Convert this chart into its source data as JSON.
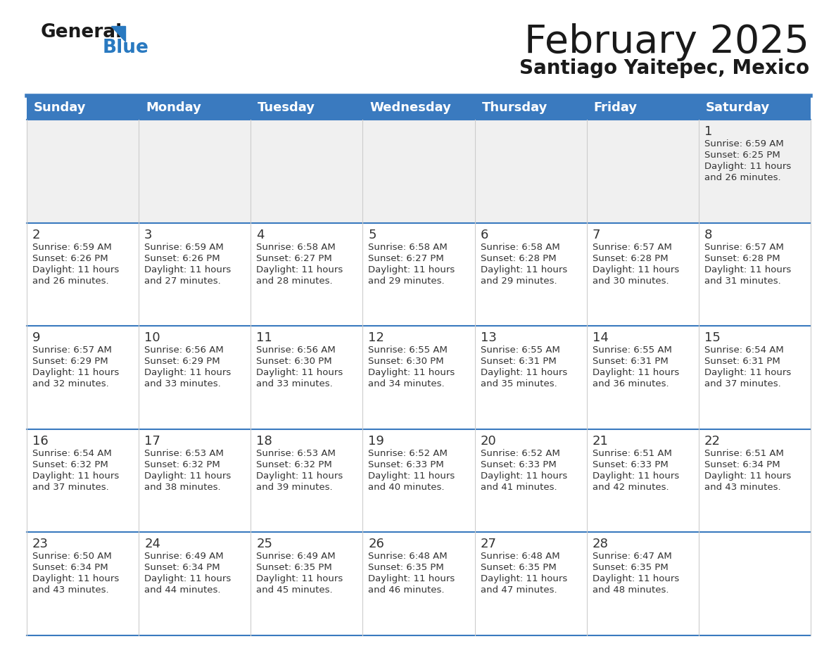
{
  "title": "February 2025",
  "subtitle": "Santiago Yaitepec, Mexico",
  "days_of_week": [
    "Sunday",
    "Monday",
    "Tuesday",
    "Wednesday",
    "Thursday",
    "Friday",
    "Saturday"
  ],
  "header_bg": "#3a7abf",
  "header_text": "#ffffff",
  "row_bg": "#f0f0f0",
  "row_bg_alt": "#ffffff",
  "cell_border_color": "#3a7abf",
  "cell_border_thin": "#cccccc",
  "day_num_color": "#333333",
  "info_text_color": "#333333",
  "title_color": "#1a1a1a",
  "subtitle_color": "#1a1a1a",
  "logo_general_color": "#1a1a1a",
  "logo_blue_color": "#2979c0",
  "calendar_data": [
    [
      {
        "day": null,
        "sunrise": null,
        "sunset": null,
        "daylight": null
      },
      {
        "day": null,
        "sunrise": null,
        "sunset": null,
        "daylight": null
      },
      {
        "day": null,
        "sunrise": null,
        "sunset": null,
        "daylight": null
      },
      {
        "day": null,
        "sunrise": null,
        "sunset": null,
        "daylight": null
      },
      {
        "day": null,
        "sunrise": null,
        "sunset": null,
        "daylight": null
      },
      {
        "day": null,
        "sunrise": null,
        "sunset": null,
        "daylight": null
      },
      {
        "day": 1,
        "sunrise": "6:59 AM",
        "sunset": "6:25 PM",
        "daylight": "11 hours and 26 minutes."
      }
    ],
    [
      {
        "day": 2,
        "sunrise": "6:59 AM",
        "sunset": "6:26 PM",
        "daylight": "11 hours and 26 minutes."
      },
      {
        "day": 3,
        "sunrise": "6:59 AM",
        "sunset": "6:26 PM",
        "daylight": "11 hours and 27 minutes."
      },
      {
        "day": 4,
        "sunrise": "6:58 AM",
        "sunset": "6:27 PM",
        "daylight": "11 hours and 28 minutes."
      },
      {
        "day": 5,
        "sunrise": "6:58 AM",
        "sunset": "6:27 PM",
        "daylight": "11 hours and 29 minutes."
      },
      {
        "day": 6,
        "sunrise": "6:58 AM",
        "sunset": "6:28 PM",
        "daylight": "11 hours and 29 minutes."
      },
      {
        "day": 7,
        "sunrise": "6:57 AM",
        "sunset": "6:28 PM",
        "daylight": "11 hours and 30 minutes."
      },
      {
        "day": 8,
        "sunrise": "6:57 AM",
        "sunset": "6:28 PM",
        "daylight": "11 hours and 31 minutes."
      }
    ],
    [
      {
        "day": 9,
        "sunrise": "6:57 AM",
        "sunset": "6:29 PM",
        "daylight": "11 hours and 32 minutes."
      },
      {
        "day": 10,
        "sunrise": "6:56 AM",
        "sunset": "6:29 PM",
        "daylight": "11 hours and 33 minutes."
      },
      {
        "day": 11,
        "sunrise": "6:56 AM",
        "sunset": "6:30 PM",
        "daylight": "11 hours and 33 minutes."
      },
      {
        "day": 12,
        "sunrise": "6:55 AM",
        "sunset": "6:30 PM",
        "daylight": "11 hours and 34 minutes."
      },
      {
        "day": 13,
        "sunrise": "6:55 AM",
        "sunset": "6:31 PM",
        "daylight": "11 hours and 35 minutes."
      },
      {
        "day": 14,
        "sunrise": "6:55 AM",
        "sunset": "6:31 PM",
        "daylight": "11 hours and 36 minutes."
      },
      {
        "day": 15,
        "sunrise": "6:54 AM",
        "sunset": "6:31 PM",
        "daylight": "11 hours and 37 minutes."
      }
    ],
    [
      {
        "day": 16,
        "sunrise": "6:54 AM",
        "sunset": "6:32 PM",
        "daylight": "11 hours and 37 minutes."
      },
      {
        "day": 17,
        "sunrise": "6:53 AM",
        "sunset": "6:32 PM",
        "daylight": "11 hours and 38 minutes."
      },
      {
        "day": 18,
        "sunrise": "6:53 AM",
        "sunset": "6:32 PM",
        "daylight": "11 hours and 39 minutes."
      },
      {
        "day": 19,
        "sunrise": "6:52 AM",
        "sunset": "6:33 PM",
        "daylight": "11 hours and 40 minutes."
      },
      {
        "day": 20,
        "sunrise": "6:52 AM",
        "sunset": "6:33 PM",
        "daylight": "11 hours and 41 minutes."
      },
      {
        "day": 21,
        "sunrise": "6:51 AM",
        "sunset": "6:33 PM",
        "daylight": "11 hours and 42 minutes."
      },
      {
        "day": 22,
        "sunrise": "6:51 AM",
        "sunset": "6:34 PM",
        "daylight": "11 hours and 43 minutes."
      }
    ],
    [
      {
        "day": 23,
        "sunrise": "6:50 AM",
        "sunset": "6:34 PM",
        "daylight": "11 hours and 43 minutes."
      },
      {
        "day": 24,
        "sunrise": "6:49 AM",
        "sunset": "6:34 PM",
        "daylight": "11 hours and 44 minutes."
      },
      {
        "day": 25,
        "sunrise": "6:49 AM",
        "sunset": "6:35 PM",
        "daylight": "11 hours and 45 minutes."
      },
      {
        "day": 26,
        "sunrise": "6:48 AM",
        "sunset": "6:35 PM",
        "daylight": "11 hours and 46 minutes."
      },
      {
        "day": 27,
        "sunrise": "6:48 AM",
        "sunset": "6:35 PM",
        "daylight": "11 hours and 47 minutes."
      },
      {
        "day": 28,
        "sunrise": "6:47 AM",
        "sunset": "6:35 PM",
        "daylight": "11 hours and 48 minutes."
      },
      {
        "day": null,
        "sunrise": null,
        "sunset": null,
        "daylight": null
      }
    ]
  ]
}
